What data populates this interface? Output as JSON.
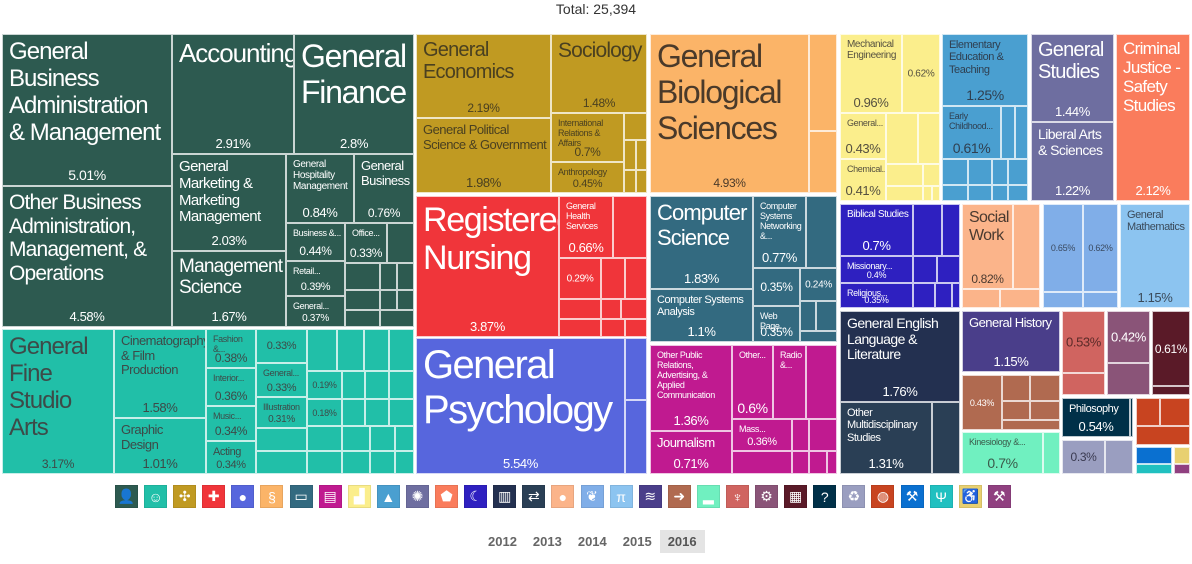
{
  "chart_data": {
    "type": "treemap",
    "total_label": "Total: 25,394",
    "groups": [
      {
        "icon": "business-person-icon",
        "color": "#2d5a50",
        "text": "#ffffff",
        "cells": [
          {
            "label": "General Business Administration & Management",
            "value": "5.01%"
          },
          {
            "label": "Other Business Administration, Management, & Operations",
            "value": "4.58%"
          },
          {
            "label": "Accounting",
            "value": "2.91%"
          },
          {
            "label": "General Finance",
            "value": "2.8%"
          },
          {
            "label": "General Marketing & Marketing Management",
            "value": "2.03%"
          },
          {
            "label": "Management Science",
            "value": "1.67%"
          },
          {
            "label": "General Hospitality Management",
            "value": "0.84%"
          },
          {
            "label": "General Business",
            "value": "0.76%"
          },
          {
            "label": "Business &...",
            "value": "0.44%"
          },
          {
            "label": "Office...",
            "value": "0.33%"
          },
          {
            "label": "Retail...",
            "value": "0.39%"
          },
          {
            "label": "General...",
            "value": "0.37%"
          }
        ]
      },
      {
        "icon": "theater-masks-icon",
        "color": "#21bfa8",
        "text": "#3d4a48",
        "cells": [
          {
            "label": "General Fine Studio Arts",
            "value": "3.17%"
          },
          {
            "label": "Cinematography & Film Production",
            "value": "1.58%"
          },
          {
            "label": "Graphic Design",
            "value": "1.01%"
          },
          {
            "label": "Fashion &...",
            "value": "0.38%"
          },
          {
            "label": "Interior...",
            "value": "0.36%"
          },
          {
            "label": "Music...",
            "value": "0.34%"
          },
          {
            "label": "Acting",
            "value": "0.34%"
          },
          {
            "label": "",
            "value": "0.33%"
          },
          {
            "label": "General...",
            "value": "0.33%"
          },
          {
            "label": "Illustration",
            "value": "0.31%"
          },
          {
            "label": "",
            "value": "0.19%"
          },
          {
            "label": "",
            "value": "0.18%"
          }
        ]
      },
      {
        "icon": "network-icon",
        "color": "#c09a22",
        "text": "#4a4020",
        "cells": [
          {
            "label": "General Economics",
            "value": "2.19%"
          },
          {
            "label": "Sociology",
            "value": "1.48%"
          },
          {
            "label": "General Political Science & Government",
            "value": "1.98%"
          },
          {
            "label": "International Relations & Affairs",
            "value": "0.7%"
          },
          {
            "label": "Anthropology",
            "value": "0.45%"
          }
        ]
      },
      {
        "icon": "medical-cross-icon",
        "color": "#f0353a",
        "text": "#ffffff",
        "cells": [
          {
            "label": "Registered Nursing",
            "value": "3.87%"
          },
          {
            "label": "General Health Services",
            "value": "0.66%"
          },
          {
            "label": "",
            "value": "0.29%"
          }
        ]
      },
      {
        "icon": "speech-bubble-icon",
        "color": "#5766dd",
        "text": "#ffffff",
        "cells": [
          {
            "label": "General Psychology",
            "value": "5.54%"
          }
        ]
      },
      {
        "icon": "dna-icon",
        "color": "#fbb468",
        "text": "#4a3a2a",
        "cells": [
          {
            "label": "General Biological Sciences",
            "value": "4.93%"
          }
        ]
      },
      {
        "icon": "computer-icon",
        "color": "#336a80",
        "text": "#ffffff",
        "cells": [
          {
            "label": "Computer Science",
            "value": "1.83%"
          },
          {
            "label": "Computer Systems Analysis",
            "value": "1.1%"
          },
          {
            "label": "Computer Systems Networking &...",
            "value": "0.77%"
          },
          {
            "label": "",
            "value": "0.35%"
          },
          {
            "label": "",
            "value": "0.24%"
          },
          {
            "label": "Web Page...",
            "value": "0.35%"
          }
        ]
      },
      {
        "icon": "scroll-icon",
        "color": "#c01a90",
        "text": "#ffffff",
        "cells": [
          {
            "label": "Other Public Relations, Advertising, & Applied Communication",
            "value": "1.36%"
          },
          {
            "label": "Journalism",
            "value": "0.71%"
          },
          {
            "label": "Other...",
            "value": "0.6%"
          },
          {
            "label": "Radio &...",
            "value": ""
          },
          {
            "label": "Mass...",
            "value": "0.36%"
          }
        ]
      },
      {
        "icon": "factory-icon",
        "color": "#fbee8c",
        "text": "#555040",
        "cells": [
          {
            "label": "Mechanical Engineering",
            "value": "0.96%"
          },
          {
            "label": "",
            "value": "0.62%"
          },
          {
            "label": "General...",
            "value": "0.43%"
          },
          {
            "label": "Chemical...",
            "value": "0.41%"
          }
        ]
      },
      {
        "icon": "graduation-cap-icon",
        "color": "#4a9fd0",
        "text": "#2f3f50",
        "cells": [
          {
            "label": "Elementary Education & Teaching",
            "value": "1.25%"
          },
          {
            "label": "Early Childhood...",
            "value": "0.61%"
          }
        ]
      },
      {
        "icon": "sun-icon",
        "color": "#6e6ea0",
        "text": "#ffffff",
        "cells": [
          {
            "label": "General Studies",
            "value": "1.44%"
          },
          {
            "label": "Liberal Arts & Sciences",
            "value": "1.22%"
          }
        ]
      },
      {
        "icon": "shield-icon",
        "color": "#fa7c5c",
        "text": "#ffffff",
        "cells": [
          {
            "label": "Criminal Justice - Safety Studies",
            "value": "2.12%"
          }
        ]
      },
      {
        "icon": "moon-icon",
        "color": "#2e20c0",
        "text": "#ffffff",
        "cells": [
          {
            "label": "Biblical Studies",
            "value": "0.7%"
          },
          {
            "label": "Missionary...",
            "value": "0.4%"
          },
          {
            "label": "Religious...",
            "value": "0.35%"
          }
        ]
      },
      {
        "icon": "book-icon",
        "color": "#233050",
        "text": "#ffffff",
        "cells": [
          {
            "label": "General English Language & Literature",
            "value": "1.76%"
          }
        ]
      },
      {
        "icon": "arrows-exchange-icon",
        "color": "#2a3f55",
        "text": "#ffffff",
        "cells": [
          {
            "label": "Other Multidisciplinary Studies",
            "value": "1.31%"
          }
        ]
      },
      {
        "icon": "people-icon",
        "color": "#fbb48a",
        "text": "#4a3a30",
        "cells": [
          {
            "label": "Social Work",
            "value": "0.82%"
          }
        ]
      },
      {
        "icon": "leaf-icon",
        "color": "#80aee8",
        "text": "#3a4a60",
        "cells": [
          {
            "label": "",
            "value": "0.65%"
          },
          {
            "label": "",
            "value": "0.62%"
          }
        ]
      },
      {
        "icon": "pi-icon",
        "color": "#8cc4f0",
        "text": "#3a4a5a",
        "cells": [
          {
            "label": "General Mathematics",
            "value": "1.15%"
          }
        ]
      },
      {
        "icon": "waves-chart-icon",
        "color": "#4a3e8a",
        "text": "#ffffff",
        "cells": [
          {
            "label": "General History",
            "value": "1.15%"
          }
        ]
      },
      {
        "icon": "globe-arrow-icon",
        "color": "#b06a50",
        "text": "#ffffff",
        "cells": [
          {
            "label": "",
            "value": "0.43%"
          }
        ]
      },
      {
        "icon": "shoe-icon",
        "color": "#70f0c0",
        "text": "#3a5a4a",
        "cells": [
          {
            "label": "Kinesiology &...",
            "value": "0.7%"
          }
        ]
      },
      {
        "icon": "radio-tower-icon",
        "color": "#d06460",
        "text": "#5a2a28",
        "cells": [
          {
            "label": "",
            "value": "0.53%"
          }
        ]
      },
      {
        "icon": "gears-icon",
        "color": "#8a5478",
        "text": "#ffffff",
        "cells": [
          {
            "label": "",
            "value": "0.42%"
          }
        ]
      },
      {
        "icon": "grid-icon",
        "color": "#5a1a28",
        "text": "#ffffff",
        "cells": [
          {
            "label": "",
            "value": "0.61%"
          }
        ]
      },
      {
        "icon": "question-mark-icon",
        "color": "#003048",
        "text": "#ffffff",
        "cells": [
          {
            "label": "Philosophy",
            "value": "0.54%"
          }
        ]
      },
      {
        "icon": "recycle-icon",
        "color": "#9a9ec0",
        "text": "#3a3a50",
        "cells": [
          {
            "label": "",
            "value": "0.3%"
          }
        ]
      },
      {
        "icon": "globe-icon",
        "color": "#c84420",
        "text": "#ffffff",
        "cells": []
      },
      {
        "icon": "gavel-icon",
        "color": "#0a70d0",
        "text": "#ffffff",
        "cells": []
      },
      {
        "icon": "fork-knife-icon",
        "color": "#20c0c0",
        "text": "#ffffff",
        "cells": []
      },
      {
        "icon": "wheelchair-icon",
        "color": "#e8d070",
        "text": "#ffffff",
        "cells": []
      },
      {
        "icon": "wrench-icon",
        "color": "#904080",
        "text": "#ffffff",
        "cells": []
      }
    ]
  },
  "years": {
    "options": [
      "2012",
      "2013",
      "2014",
      "2015",
      "2016"
    ],
    "selected": "2016"
  }
}
